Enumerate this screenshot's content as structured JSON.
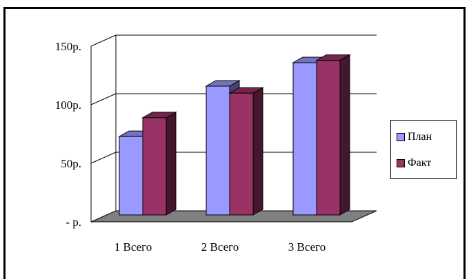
{
  "chart_data": {
    "type": "bar",
    "categories": [
      "1 Всего",
      "2 Всего",
      "3 Всего"
    ],
    "series": [
      {
        "name": "План",
        "values": [
          67,
          110,
          130
        ],
        "color": "#9999ff"
      },
      {
        "name": "Факт",
        "values": [
          83,
          104,
          132
        ],
        "color": "#993366"
      }
    ],
    "ylim": [
      0,
      150
    ],
    "yticks": [
      {
        "value": 150,
        "label": "150р."
      },
      {
        "value": 100,
        "label": "100р."
      },
      {
        "value": 50,
        "label": "50р."
      },
      {
        "value": 0,
        "label": "-   р."
      }
    ],
    "grid": true,
    "legend_position": "right",
    "floor_color": "#808080"
  }
}
